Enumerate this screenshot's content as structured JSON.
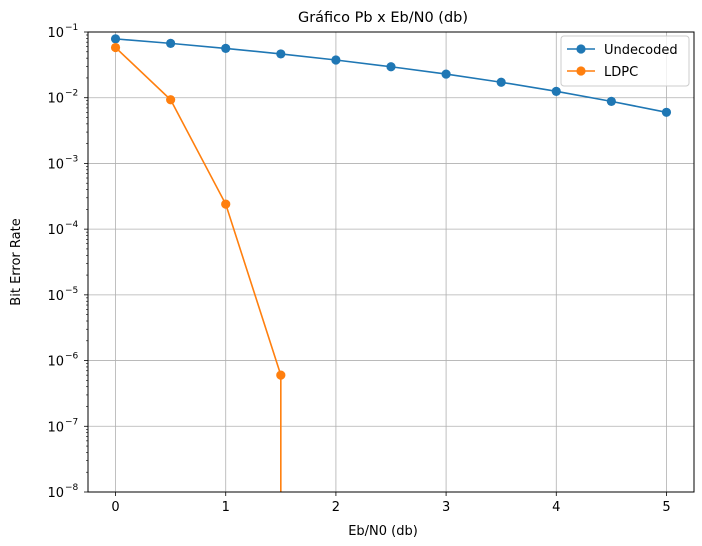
{
  "chart_data": {
    "type": "line",
    "title": "Gráfico Pb x Eb/N0 (db)",
    "xlabel": "Eb/N0 (db)",
    "ylabel": "Bit Error Rate",
    "xlim": [
      -0.25,
      5.25
    ],
    "ylim": [
      1e-08,
      0.1
    ],
    "yscale": "log",
    "grid": true,
    "legend_position": "top-right",
    "x_ticks": [
      "0",
      "1",
      "2",
      "3",
      "4",
      "5"
    ],
    "y_ticks": [
      {
        "base": "10",
        "exp": "−1",
        "value": 0.1
      },
      {
        "base": "10",
        "exp": "−2",
        "value": 0.01
      },
      {
        "base": "10",
        "exp": "−3",
        "value": 0.001
      },
      {
        "base": "10",
        "exp": "−4",
        "value": 0.0001
      },
      {
        "base": "10",
        "exp": "−5",
        "value": 1e-05
      },
      {
        "base": "10",
        "exp": "−6",
        "value": 1e-06
      },
      {
        "base": "10",
        "exp": "−7",
        "value": 1e-07
      },
      {
        "base": "10",
        "exp": "−8",
        "value": 1e-08
      }
    ],
    "series": [
      {
        "name": "Undecoded",
        "color": "#1f77b4",
        "x": [
          0,
          0.5,
          1,
          1.5,
          2,
          2.5,
          3,
          3.5,
          4,
          4.5,
          5
        ],
        "values": [
          0.0786,
          0.0671,
          0.0563,
          0.0464,
          0.0375,
          0.0296,
          0.0229,
          0.0172,
          0.0125,
          0.0088,
          0.006
        ]
      },
      {
        "name": "LDPC",
        "color": "#ff7f0e",
        "x": [
          0,
          0.5,
          1,
          1.5
        ],
        "values": [
          0.058,
          0.0093,
          0.00024,
          6e-07
        ],
        "drop_to_zero_at": 1.5
      }
    ]
  }
}
